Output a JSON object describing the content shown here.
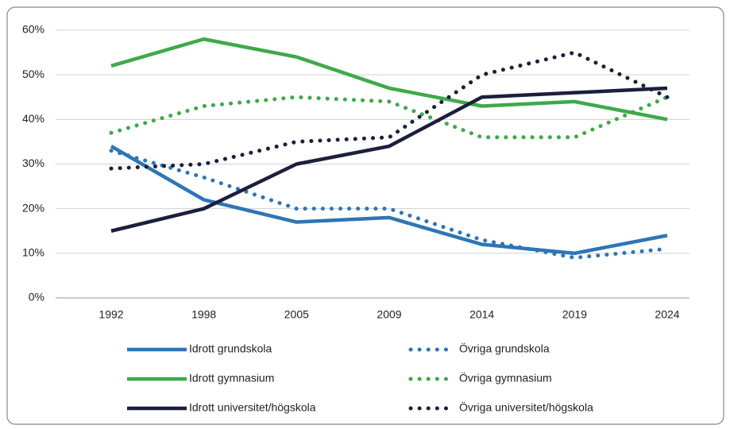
{
  "chart_data": {
    "type": "line",
    "categories": [
      "1992",
      "1998",
      "2005",
      "2009",
      "2014",
      "2019",
      "2024"
    ],
    "ylim": [
      0,
      60
    ],
    "yticks": [
      {
        "value": 0,
        "label": "0%"
      },
      {
        "value": 10,
        "label": "10%"
      },
      {
        "value": 20,
        "label": "20%"
      },
      {
        "value": 30,
        "label": "30%"
      },
      {
        "value": 40,
        "label": "40%"
      },
      {
        "value": 50,
        "label": "50%"
      },
      {
        "value": 60,
        "label": "60%"
      }
    ],
    "grid": true,
    "series": [
      {
        "name": "Idrott grundskola",
        "color": "#2e75b6",
        "line_style": "solid",
        "values": [
          34,
          22,
          17,
          18,
          12,
          10,
          14
        ]
      },
      {
        "name": "Övriga grundskola",
        "color": "#2e75b6",
        "line_style": "dotted",
        "values": [
          33,
          27,
          20,
          20,
          13,
          9,
          11
        ]
      },
      {
        "name": "Idrott gymnasium",
        "color": "#3fa94a",
        "line_style": "solid",
        "values": [
          52,
          58,
          54,
          47,
          43,
          44,
          40
        ]
      },
      {
        "name": "Övriga gymnasium",
        "color": "#3fa94a",
        "line_style": "dotted",
        "values": [
          37,
          43,
          45,
          44,
          36,
          36,
          45
        ]
      },
      {
        "name": "Idrott universitet/högskola",
        "color": "#1b1f3b",
        "line_style": "solid",
        "values": [
          15,
          20,
          30,
          34,
          45,
          46,
          47
        ]
      },
      {
        "name": "Övriga universitet/högskola",
        "color": "#1b1f3b",
        "line_style": "dotted",
        "values": [
          29,
          30,
          35,
          36,
          50,
          55,
          45
        ]
      }
    ]
  }
}
